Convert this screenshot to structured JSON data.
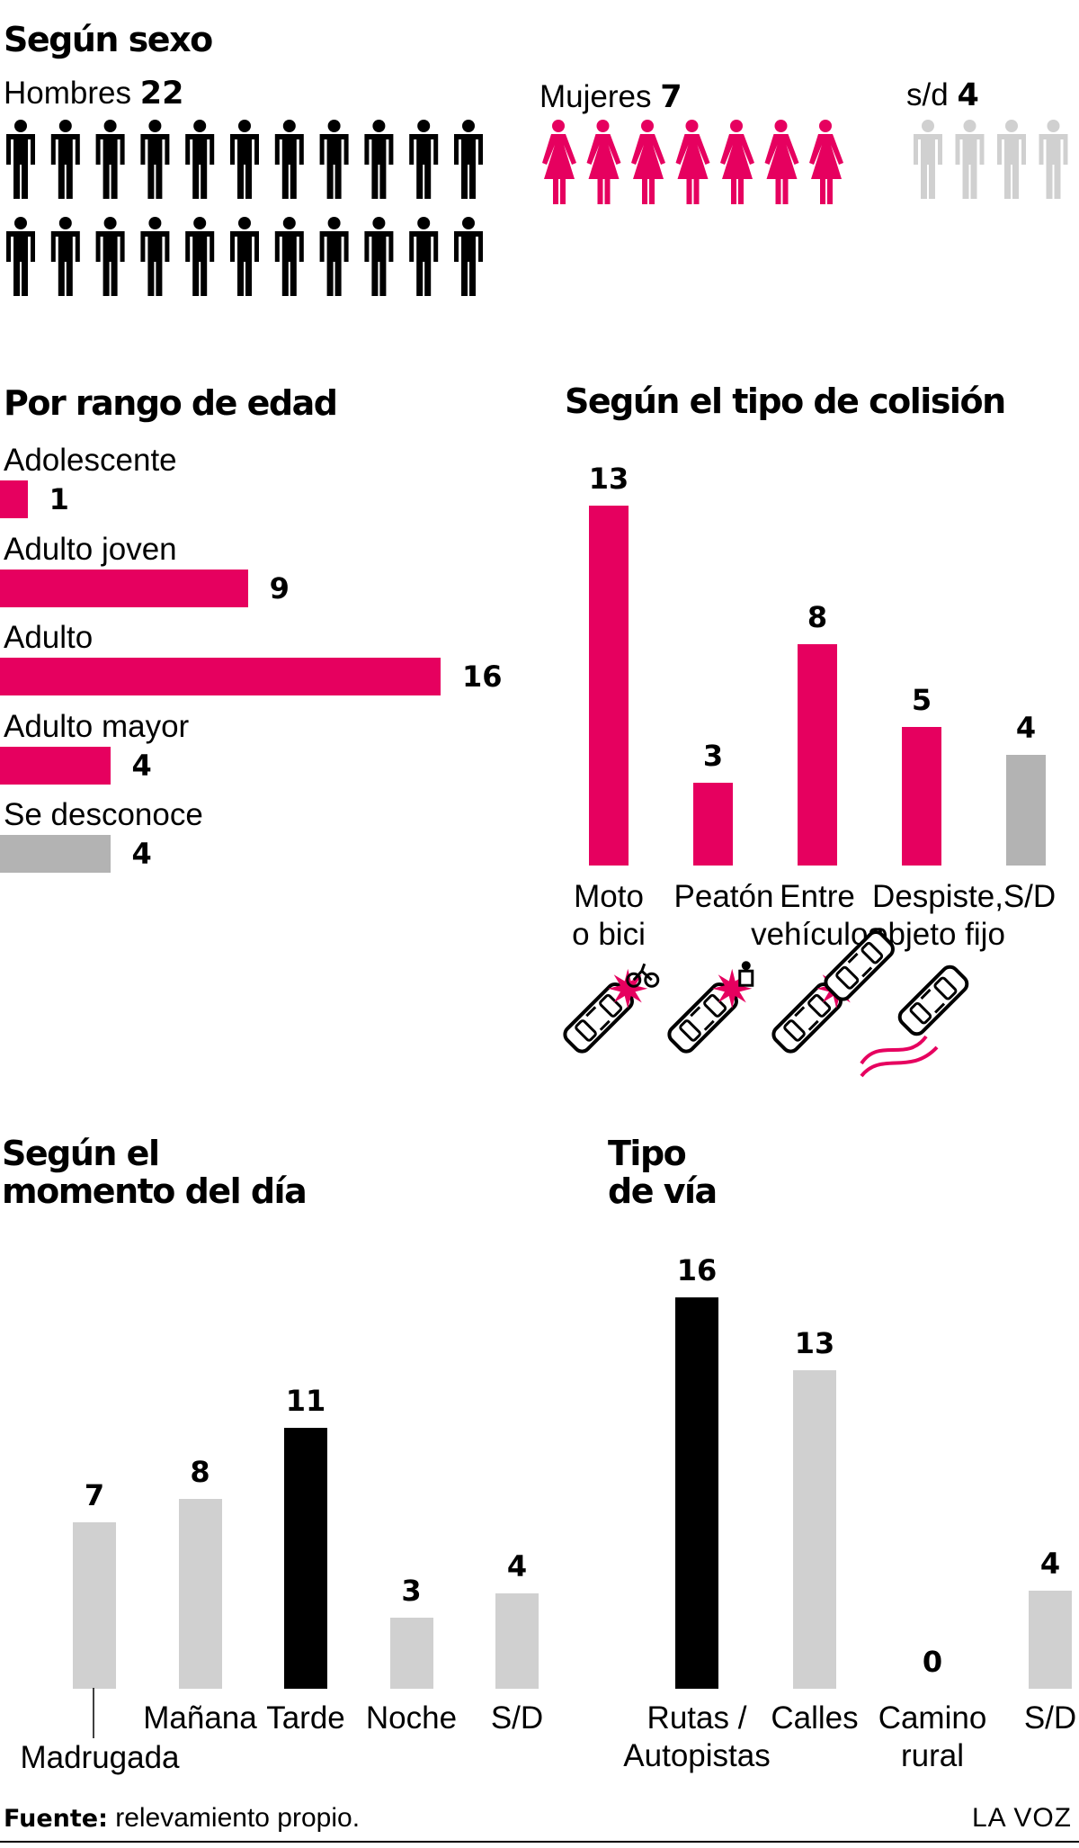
{
  "colors": {
    "magenta": "#e6005f",
    "black": "#000000",
    "gray": "#b3b3b3",
    "lightgray": "#d0d0d0"
  },
  "sexo": {
    "title": "Según sexo",
    "hombres": {
      "label": "Hombres",
      "value": "22",
      "count": 22,
      "color": "#000000"
    },
    "mujeres": {
      "label": "Mujeres",
      "value": "7",
      "count": 7,
      "color": "#e6005f"
    },
    "sd": {
      "label": "s/d",
      "value": "4",
      "count": 4,
      "color": "#d0d0d0"
    }
  },
  "edad": {
    "title": "Por rango de edad",
    "rows": [
      {
        "label": "Adolescente",
        "value": "1"
      },
      {
        "label": "Adulto joven",
        "value": "9"
      },
      {
        "label": "Adulto",
        "value": "16"
      },
      {
        "label": "Adulto mayor",
        "value": "4"
      },
      {
        "label": "Se desconoce",
        "value": "4"
      }
    ]
  },
  "colision": {
    "title": "Según el tipo de colisión",
    "bars": [
      {
        "value": "13",
        "line1": "Moto",
        "line2": "o bici",
        "icon": "car-bike-crash-icon"
      },
      {
        "value": "3",
        "line1": "Peatón",
        "line2": "",
        "icon": "car-pedestrian-crash-icon"
      },
      {
        "value": "8",
        "line1": "Entre",
        "line2": "vehículos",
        "icon": "car-car-crash-icon"
      },
      {
        "value": "5",
        "line1": "Despiste,",
        "line2": "objeto fijo",
        "icon": "car-skid-icon"
      },
      {
        "value": "4",
        "line1": "S/D",
        "line2": "",
        "icon": ""
      }
    ]
  },
  "momento": {
    "title_line1": "Según el",
    "title_line2": "momento del día",
    "bars": [
      {
        "value": "7",
        "line1": "Madrugada"
      },
      {
        "value": "8",
        "line1": "Mañana"
      },
      {
        "value": "11",
        "line1": "Tarde"
      },
      {
        "value": "3",
        "line1": "Noche"
      },
      {
        "value": "4",
        "line1": "S/D"
      }
    ]
  },
  "via": {
    "title_line1": "Tipo",
    "title_line2": "de vía",
    "bars": [
      {
        "value": "16",
        "line1": "Rutas /",
        "line2": "Autopistas"
      },
      {
        "value": "13",
        "line1": "Calles",
        "line2": ""
      },
      {
        "value": "0",
        "line1": "Camino",
        "line2": "rural"
      },
      {
        "value": "4",
        "line1": "S/D",
        "line2": ""
      }
    ]
  },
  "footer": {
    "source_label": "Fuente:",
    "source_text": " relevamiento propio.",
    "brand": "LA VOZ"
  },
  "chart_data": [
    {
      "type": "pictogram",
      "title": "Según sexo",
      "categories": [
        "Hombres",
        "Mujeres",
        "s/d"
      ],
      "values": [
        22,
        7,
        4
      ]
    },
    {
      "type": "bar",
      "orientation": "horizontal",
      "title": "Por rango de edad",
      "categories": [
        "Adolescente",
        "Adulto joven",
        "Adulto",
        "Adulto mayor",
        "Se desconoce"
      ],
      "values": [
        1,
        9,
        16,
        4,
        4
      ],
      "colors": [
        "#e6005f",
        "#e6005f",
        "#e6005f",
        "#e6005f",
        "#b3b3b3"
      ]
    },
    {
      "type": "bar",
      "title": "Según el tipo de colisión",
      "categories": [
        "Moto o bici",
        "Peatón",
        "Entre vehículos",
        "Despiste, objeto fijo",
        "S/D"
      ],
      "values": [
        13,
        3,
        8,
        5,
        4
      ],
      "colors": [
        "#e6005f",
        "#e6005f",
        "#e6005f",
        "#e6005f",
        "#b3b3b3"
      ]
    },
    {
      "type": "bar",
      "title": "Según el momento del día",
      "categories": [
        "Madrugada",
        "Mañana",
        "Tarde",
        "Noche",
        "S/D"
      ],
      "values": [
        7,
        8,
        11,
        3,
        4
      ],
      "colors": [
        "#d0d0d0",
        "#d0d0d0",
        "#000000",
        "#d0d0d0",
        "#d0d0d0"
      ]
    },
    {
      "type": "bar",
      "title": "Tipo de vía",
      "categories": [
        "Rutas / Autopistas",
        "Calles",
        "Camino rural",
        "S/D"
      ],
      "values": [
        16,
        13,
        0,
        4
      ],
      "colors": [
        "#000000",
        "#d0d0d0",
        "#d0d0d0",
        "#d0d0d0"
      ]
    }
  ]
}
